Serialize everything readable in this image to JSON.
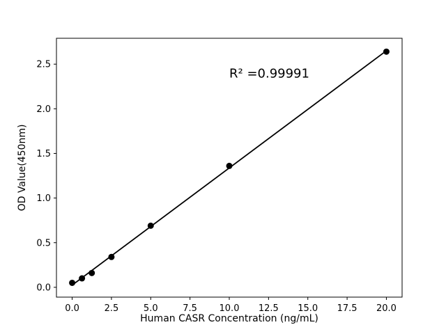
{
  "figure": {
    "background": "#ffffff"
  },
  "chart_data": {
    "type": "scatter",
    "title": "",
    "xlabel": "Human CASR Concentration (ng/mL)",
    "ylabel": "OD Value(450nm)",
    "x": [
      0,
      0.625,
      1.25,
      2.5,
      5,
      10,
      20
    ],
    "y": [
      0.05,
      0.1,
      0.16,
      0.34,
      0.69,
      1.36,
      2.64
    ],
    "fit_line": true,
    "annotation": {
      "text": "R² =0.99991",
      "x": 10,
      "y": 2.35
    },
    "xlim": [
      -1,
      21
    ],
    "ylim": [
      -0.11,
      2.79
    ],
    "xticks": [
      0,
      2.5,
      5,
      7.5,
      10,
      12.5,
      15,
      17.5,
      20
    ],
    "xtick_labels": [
      "0.0",
      "2.5",
      "5.0",
      "7.5",
      "10.0",
      "12.5",
      "15.0",
      "17.5",
      "20.0"
    ],
    "yticks": [
      0,
      0.5,
      1,
      1.5,
      2,
      2.5
    ],
    "ytick_labels": [
      "0.0",
      "0.5",
      "1.0",
      "1.5",
      "2.0",
      "2.5"
    ],
    "grid": false,
    "legend": null,
    "marker_color": "#000000",
    "line_color": "#000000",
    "axis_color": "#000000"
  }
}
